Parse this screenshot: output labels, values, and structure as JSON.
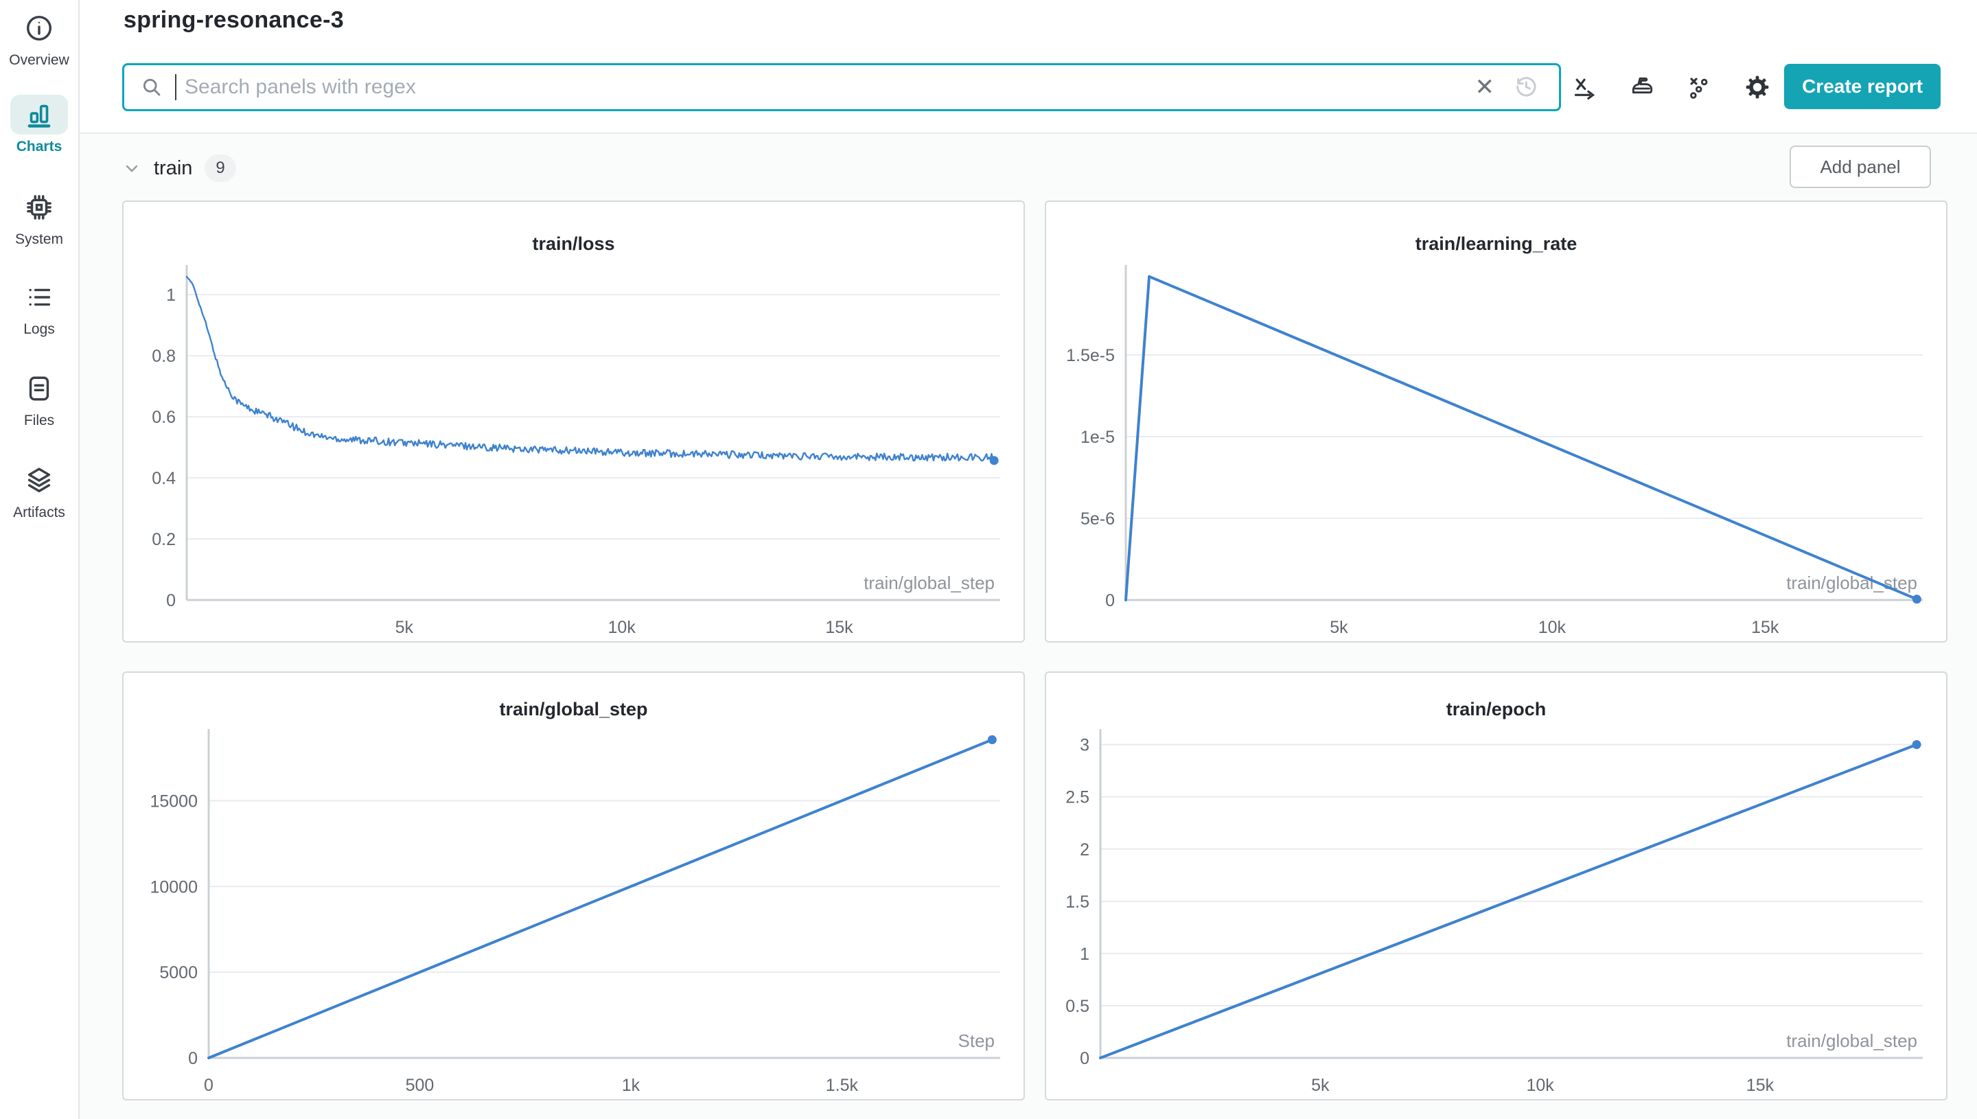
{
  "header": {
    "title": "spring-resonance-3",
    "search": {
      "placeholder": "Search panels with regex",
      "clear_icon": "x-clear-icon",
      "history_icon": "clock-history-icon"
    },
    "toolbar_icons": [
      {
        "name": "x-axis-icon"
      },
      {
        "name": "smoothing-iron-icon"
      },
      {
        "name": "outliers-icon"
      },
      {
        "name": "settings-gear-icon"
      }
    ],
    "create_report_label": "Create report"
  },
  "sidebar": {
    "items": [
      {
        "label": "Overview",
        "icon": "info-icon",
        "active": false
      },
      {
        "label": "Charts",
        "icon": "bar-chart-icon",
        "active": true
      },
      {
        "label": "System",
        "icon": "cpu-chip-icon",
        "active": false
      },
      {
        "label": "Logs",
        "icon": "list-icon",
        "active": false
      },
      {
        "label": "Files",
        "icon": "document-icon",
        "active": false
      },
      {
        "label": "Artifacts",
        "icon": "layers-icon",
        "active": false
      }
    ]
  },
  "section": {
    "title": "train",
    "panel_count": "9",
    "add_panel_label": "Add panel"
  },
  "colors": {
    "accent_teal": "#14a4b4",
    "active_nav_teal": "#0e8a9e",
    "search_border_teal": "#0aa6bb",
    "line_blue": "#3f82cf",
    "gridline": "#e9ebee",
    "axis": "#cbd0d5"
  },
  "chart_data": [
    {
      "type": "line",
      "title": "train/loss",
      "xlabel": "train/global_step",
      "xlim": [
        0,
        18700
      ],
      "ylim": [
        0,
        1.07
      ],
      "xticks": [
        {
          "v": 5000,
          "l": "5k"
        },
        {
          "v": 10000,
          "l": "10k"
        },
        {
          "v": 15000,
          "l": "15k"
        }
      ],
      "yticks": [
        {
          "v": 0,
          "l": "0"
        },
        {
          "v": 0.2,
          "l": "0.2"
        },
        {
          "v": 0.4,
          "l": "0.4"
        },
        {
          "v": 0.6,
          "l": "0.6"
        },
        {
          "v": 0.8,
          "l": "0.8"
        },
        {
          "v": 1,
          "l": "1"
        }
      ],
      "margin_left": 92,
      "color": "#3f82cf",
      "stroke_width": 2.4,
      "noise_amplitude": 0.012,
      "end_dot": true,
      "points": [
        [
          0,
          1.06
        ],
        [
          150,
          1.03
        ],
        [
          300,
          0.965
        ],
        [
          450,
          0.9
        ],
        [
          600,
          0.825
        ],
        [
          750,
          0.755
        ],
        [
          850,
          0.717
        ],
        [
          950,
          0.692
        ],
        [
          1050,
          0.67
        ],
        [
          1150,
          0.654
        ],
        [
          1250,
          0.642
        ],
        [
          1400,
          0.63
        ],
        [
          1550,
          0.62
        ],
        [
          1700,
          0.612
        ],
        [
          1900,
          0.602
        ],
        [
          2100,
          0.591
        ],
        [
          2400,
          0.571
        ],
        [
          2700,
          0.552
        ],
        [
          3000,
          0.538
        ],
        [
          3300,
          0.531
        ],
        [
          3600,
          0.527
        ],
        [
          4000,
          0.524
        ],
        [
          4500,
          0.519
        ],
        [
          5000,
          0.515
        ],
        [
          5500,
          0.511
        ],
        [
          6000,
          0.508
        ],
        [
          6500,
          0.504
        ],
        [
          7000,
          0.5
        ],
        [
          7500,
          0.496
        ],
        [
          8000,
          0.493
        ],
        [
          8500,
          0.49
        ],
        [
          9000,
          0.488
        ],
        [
          9500,
          0.485
        ],
        [
          10000,
          0.483
        ],
        [
          10500,
          0.481
        ],
        [
          11000,
          0.48
        ],
        [
          11500,
          0.478
        ],
        [
          12000,
          0.477
        ],
        [
          12500,
          0.476
        ],
        [
          13000,
          0.474
        ],
        [
          13500,
          0.473
        ],
        [
          14000,
          0.472
        ],
        [
          14500,
          0.471
        ],
        [
          15000,
          0.47
        ],
        [
          15500,
          0.4695
        ],
        [
          16000,
          0.469
        ],
        [
          16500,
          0.4685
        ],
        [
          17000,
          0.468
        ],
        [
          17500,
          0.468
        ],
        [
          18000,
          0.468
        ],
        [
          18560,
          0.468
        ]
      ]
    },
    {
      "type": "line",
      "title": "train/learning_rate",
      "xlabel": "train/global_step",
      "xlim": [
        0,
        18700
      ],
      "ylim": [
        0,
        2e-05
      ],
      "xticks": [
        {
          "v": 5000,
          "l": "5k"
        },
        {
          "v": 10000,
          "l": "10k"
        },
        {
          "v": 15000,
          "l": "15k"
        }
      ],
      "yticks": [
        {
          "v": 0,
          "l": "0"
        },
        {
          "v": 5e-06,
          "l": "5e-6"
        },
        {
          "v": 1e-05,
          "l": "1e-5"
        },
        {
          "v": 1.5e-05,
          "l": "1.5e-5"
        }
      ],
      "margin_left": 116,
      "color": "#3f82cf",
      "stroke_width": 4,
      "noise_amplitude": 0,
      "end_dot": true,
      "points": [
        [
          0,
          0
        ],
        [
          550,
          1.98e-05
        ],
        [
          18560,
          5e-08
        ]
      ]
    },
    {
      "type": "line",
      "title": "train/global_step",
      "xlabel": "Step",
      "xlim": [
        0,
        1875
      ],
      "ylim": [
        0,
        18700
      ],
      "xticks": [
        {
          "v": 0,
          "l": "0"
        },
        {
          "v": 500,
          "l": "500"
        },
        {
          "v": 1000,
          "l": "1k"
        },
        {
          "v": 1500,
          "l": "1.5k"
        }
      ],
      "yticks": [
        {
          "v": 0,
          "l": "0"
        },
        {
          "v": 5000,
          "l": "5000"
        },
        {
          "v": 10000,
          "l": "10000"
        },
        {
          "v": 15000,
          "l": "15000"
        }
      ],
      "margin_left": 124,
      "color": "#3f82cf",
      "stroke_width": 4,
      "noise_amplitude": 0,
      "end_dot": true,
      "points": [
        [
          0,
          0
        ],
        [
          1856,
          18560
        ]
      ]
    },
    {
      "type": "line",
      "title": "train/epoch",
      "xlabel": "train/global_step",
      "xlim": [
        0,
        18700
      ],
      "ylim": [
        0,
        3.07
      ],
      "xticks": [
        {
          "v": 5000,
          "l": "5k"
        },
        {
          "v": 10000,
          "l": "10k"
        },
        {
          "v": 15000,
          "l": "15k"
        }
      ],
      "yticks": [
        {
          "v": 0,
          "l": "0"
        },
        {
          "v": 0.5,
          "l": "0.5"
        },
        {
          "v": 1,
          "l": "1"
        },
        {
          "v": 1.5,
          "l": "1.5"
        },
        {
          "v": 2,
          "l": "2"
        },
        {
          "v": 2.5,
          "l": "2.5"
        },
        {
          "v": 3,
          "l": "3"
        }
      ],
      "margin_left": 79,
      "color": "#3f82cf",
      "stroke_width": 4,
      "noise_amplitude": 0,
      "end_dot": true,
      "points": [
        [
          0,
          0
        ],
        [
          18560,
          3
        ]
      ]
    }
  ]
}
